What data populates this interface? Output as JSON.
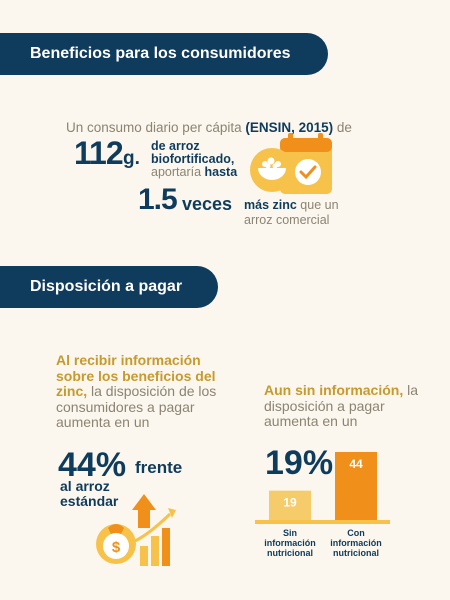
{
  "section1": {
    "banner": "Beneficios para los consumidores",
    "intro_pre": "Un consumo diario per cápita ",
    "intro_source": "(ENSIN, 2015)",
    "intro_post": " de",
    "amount_number": "112",
    "amount_unit": "g.",
    "rice_line1": "de arroz",
    "rice_line2": "biofortificado,",
    "rice_line3_light": "aportaría ",
    "rice_line3_bold": "hasta",
    "times_number": "1.5",
    "times_word": "veces",
    "zinc_bold": "más zinc",
    "zinc_rest": " que un arroz comercial"
  },
  "section2": {
    "banner": "Disposición a pagar",
    "left_bold": "Al recibir información sobre los beneficios del zinc,",
    "left_rest": " la disposición de los consumidores a pagar aumenta en un",
    "left_pct": "44%",
    "left_frente": "frente",
    "left_vs": "al arroz estándar",
    "right_bold": "Aun sin información,",
    "right_rest": " la disposición a pagar aumenta en un",
    "right_pct": "19%"
  },
  "chart_data": {
    "type": "bar",
    "categories": [
      "Sin información nutricional",
      "Con información nutricional"
    ],
    "values": [
      19,
      44
    ],
    "colors": [
      "#f6cc6a",
      "#f0901a"
    ],
    "ylim": [
      0,
      44
    ]
  }
}
